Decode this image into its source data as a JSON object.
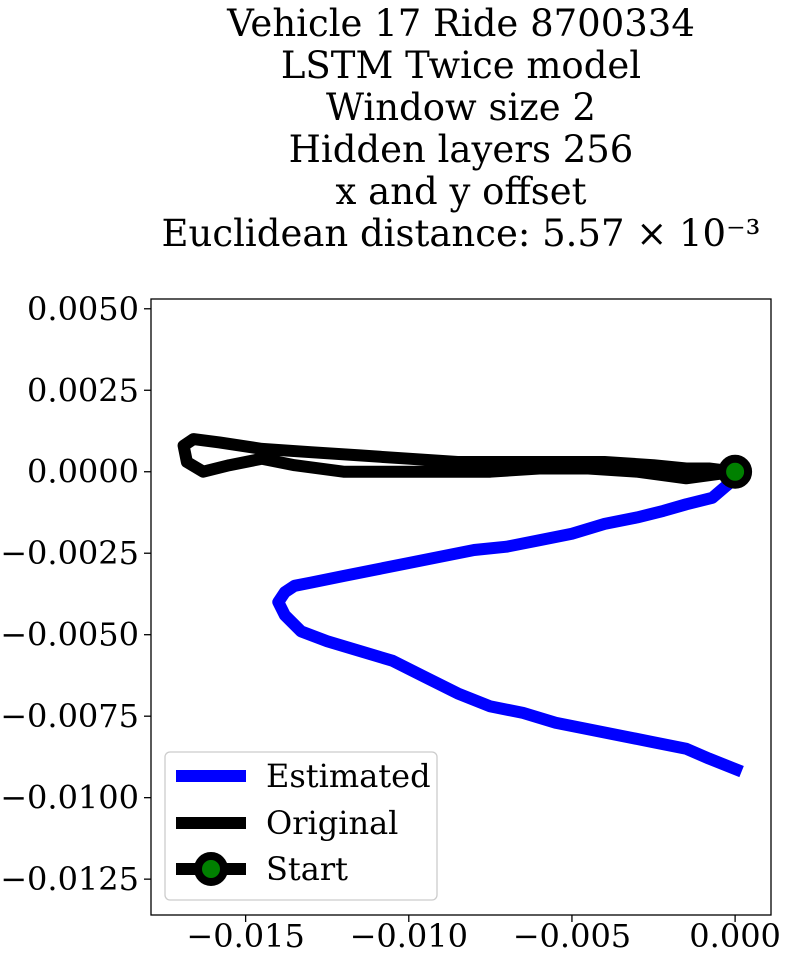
{
  "chart_data": {
    "type": "line",
    "title_lines": [
      "Vehicle 17 Ride 8700334",
      "LSTM Twice model",
      "Window size 2",
      "Hidden layers 256",
      "x and y offset",
      "Euclidean distance: 5.57 × 10⁻³"
    ],
    "xlim": [
      -0.0179,
      0.0011
    ],
    "ylim": [
      -0.0136,
      0.0053
    ],
    "x_ticks": [
      -0.015,
      -0.01,
      -0.005,
      0.0
    ],
    "x_tick_labels": [
      "−0.015",
      "−0.010",
      "−0.005",
      "0.000"
    ],
    "y_ticks": [
      0.005,
      0.0025,
      0.0,
      -0.0025,
      -0.005,
      -0.0075,
      -0.01,
      -0.0125
    ],
    "y_tick_labels": [
      "0.0050",
      "0.0025",
      "0.0000",
      "−0.0025",
      "−0.0050",
      "−0.0075",
      "−0.0100",
      "−0.0125"
    ],
    "legend_position": "lower-left",
    "series": [
      {
        "name": "Estimated",
        "color": "#0000ff",
        "x": [
          0.0,
          -0.0007,
          -0.0015,
          -0.0022,
          -0.003,
          -0.004,
          -0.005,
          -0.006,
          -0.007,
          -0.008,
          -0.009,
          -0.01,
          -0.011,
          -0.012,
          -0.013,
          -0.0135,
          -0.0138,
          -0.014,
          -0.0138,
          -0.0133,
          -0.0125,
          -0.0115,
          -0.0105,
          -0.0095,
          -0.0085,
          -0.0075,
          -0.0065,
          -0.0055,
          -0.0045,
          -0.0035,
          -0.0025,
          -0.0015,
          -0.0008,
          0.0002
        ],
        "y": [
          -0.0002,
          -0.0008,
          -0.001,
          -0.0012,
          -0.0014,
          -0.0016,
          -0.0019,
          -0.0021,
          -0.0023,
          -0.0024,
          -0.0026,
          -0.0028,
          -0.003,
          -0.0032,
          -0.0034,
          -0.0035,
          -0.0037,
          -0.004,
          -0.0044,
          -0.0049,
          -0.0052,
          -0.0055,
          -0.0058,
          -0.0063,
          -0.0068,
          -0.0072,
          -0.0074,
          -0.0077,
          -0.0079,
          -0.0081,
          -0.0083,
          -0.0085,
          -0.0088,
          -0.0092
        ]
      },
      {
        "name": "Original",
        "color": "#000000",
        "x": [
          0.0,
          -0.0015,
          -0.003,
          -0.0045,
          -0.006,
          -0.0075,
          -0.009,
          -0.0105,
          -0.012,
          -0.0135,
          -0.0145,
          -0.0155,
          -0.0163,
          -0.0168,
          -0.0169,
          -0.0166,
          -0.0158,
          -0.0145,
          -0.013,
          -0.0115,
          -0.01,
          -0.0085,
          -0.007,
          -0.0055,
          -0.004,
          -0.0025,
          -0.0015,
          -0.0008,
          0.0
        ],
        "y": [
          0.0,
          -0.0002,
          0.0,
          0.0001,
          0.0001,
          0.0,
          0.0,
          0.0,
          0.0,
          0.0002,
          0.0004,
          0.0002,
          0.0,
          0.0003,
          0.0008,
          0.001,
          0.0009,
          0.0007,
          0.0006,
          0.0005,
          0.0004,
          0.0003,
          0.0003,
          0.0003,
          0.0003,
          0.0002,
          0.0001,
          0.0001,
          0.0
        ]
      },
      {
        "name": "Start",
        "line_color": "#000000",
        "marker_color": "#008000",
        "x": [
          0.0
        ],
        "y": [
          0.0
        ]
      }
    ]
  }
}
